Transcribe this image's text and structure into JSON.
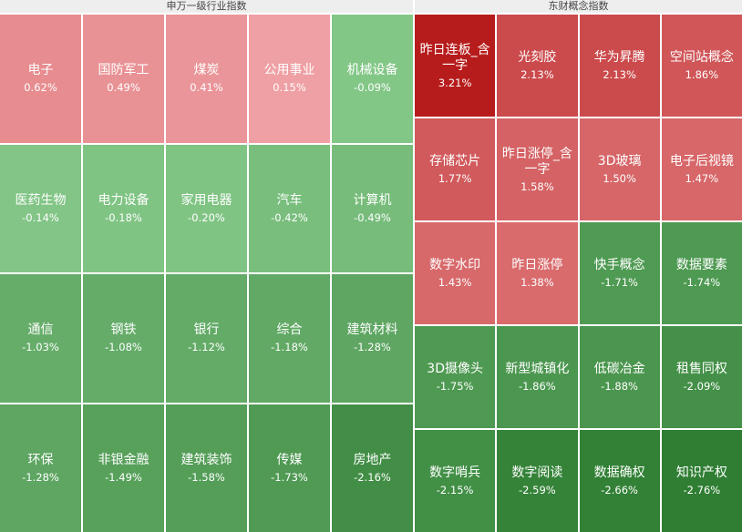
{
  "chart_data": [
    {
      "type": "heatmap",
      "title": "申万一级行业指数",
      "categories": [
        "电子",
        "国防军工",
        "煤炭",
        "公用事业",
        "机械设备",
        "医药生物",
        "电力设备",
        "家用电器",
        "汽车",
        "计算机",
        "通信",
        "钢铁",
        "银行",
        "综合",
        "建筑材料",
        "环保",
        "非银金融",
        "建筑装饰",
        "传媒",
        "房地产"
      ],
      "values": [
        0.62,
        0.49,
        0.41,
        0.15,
        -0.09,
        -0.14,
        -0.18,
        -0.2,
        -0.42,
        -0.49,
        -1.03,
        -1.08,
        -1.12,
        -1.18,
        -1.28,
        -1.28,
        -1.49,
        -1.58,
        -1.73,
        -2.16
      ],
      "value_labels": [
        "0.62%",
        "0.49%",
        "0.41%",
        "0.15%",
        "-0.09%",
        "-0.14%",
        "-0.18%",
        "-0.20%",
        "-0.42%",
        "-0.49%",
        "-1.03%",
        "-1.08%",
        "-1.12%",
        "-1.18%",
        "-1.28%",
        "-1.28%",
        "-1.49%",
        "-1.58%",
        "-1.73%",
        "-2.16%"
      ]
    },
    {
      "type": "heatmap",
      "title": "东财概念指数",
      "categories": [
        "昨日连板_含一字",
        "光刻胶",
        "华为昇腾",
        "空间站概念",
        "存储芯片",
        "昨日涨停_含一字",
        "3D玻璃",
        "电子后视镜",
        "数字水印",
        "昨日涨停",
        "快手概念",
        "数据要素",
        "3D摄像头",
        "新型城镇化",
        "低碳冶金",
        "租售同权",
        "数字哨兵",
        "数字阅读",
        "数据确权",
        "知识产权"
      ],
      "values": [
        3.21,
        2.13,
        2.13,
        1.86,
        1.77,
        1.58,
        1.5,
        1.47,
        1.43,
        1.38,
        -1.71,
        -1.74,
        -1.75,
        -1.86,
        -1.88,
        -2.09,
        -2.15,
        -2.59,
        -2.66,
        -2.76
      ],
      "value_labels": [
        "3.21%",
        "2.13%",
        "2.13%",
        "1.86%",
        "1.77%",
        "1.58%",
        "1.50%",
        "1.47%",
        "1.43%",
        "1.38%",
        "-1.71%",
        "-1.74%",
        "-1.75%",
        "-1.86%",
        "-1.88%",
        "-2.09%",
        "-2.15%",
        "-2.59%",
        "-2.66%",
        "-2.76%"
      ]
    }
  ]
}
